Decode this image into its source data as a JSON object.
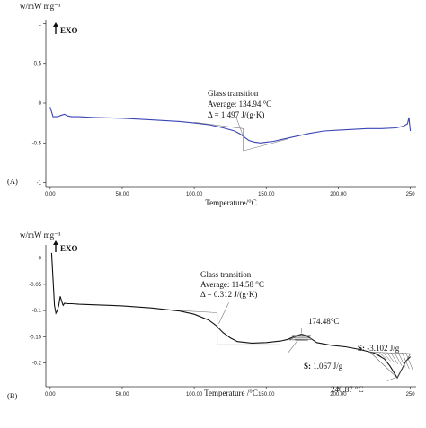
{
  "chart_data": [
    {
      "panel": "(A)",
      "type": "line",
      "ylabel": "w/mW mg⁻¹",
      "xlabel": "Temperature/°C",
      "exo_label": "EXO",
      "xlim": [
        -3,
        254
      ],
      "ylim": [
        -1.05,
        1.05
      ],
      "x_ticks": [
        0,
        50,
        100,
        150,
        200,
        250
      ],
      "x_tick_labels": [
        "0.00",
        "50.00",
        "100.00",
        "150.00",
        "200.00",
        "250"
      ],
      "y_ticks": [
        1,
        0.5,
        0,
        -0.5,
        -1
      ],
      "y_tick_labels": [
        "1",
        "0.5",
        "0",
        "-0.5",
        "-1"
      ],
      "series": [
        {
          "color": "#3a45b5",
          "x": [
            0,
            2,
            5,
            8,
            10,
            12,
            15,
            20,
            30,
            50,
            70,
            90,
            100,
            110,
            120,
            128,
            132,
            135,
            138,
            142,
            146,
            150,
            155,
            160,
            170,
            180,
            190,
            200,
            210,
            220,
            230,
            240,
            245,
            248,
            249,
            250
          ],
          "y": [
            -0.05,
            -0.17,
            -0.17,
            -0.15,
            -0.14,
            -0.16,
            -0.17,
            -0.17,
            -0.18,
            -0.19,
            -0.21,
            -0.23,
            -0.25,
            -0.27,
            -0.31,
            -0.35,
            -0.39,
            -0.43,
            -0.47,
            -0.49,
            -0.5,
            -0.49,
            -0.48,
            -0.46,
            -0.42,
            -0.38,
            -0.35,
            -0.34,
            -0.33,
            -0.32,
            -0.32,
            -0.31,
            -0.29,
            -0.26,
            -0.18,
            -0.35
          ]
        }
      ],
      "annotations": {
        "title": "Glass transition",
        "average": "Average: 134.94 °C",
        "delta": "Δ = 1.497 J/(g·K)"
      }
    },
    {
      "panel": "(B)",
      "type": "line",
      "ylabel": "w/mW mg⁻¹",
      "xlabel": "Temperature /°C",
      "exo_label": "EXO",
      "xlim": [
        -3,
        254
      ],
      "ylim": [
        -0.245,
        0.025
      ],
      "x_ticks": [
        0,
        50,
        100,
        150,
        200,
        250
      ],
      "x_tick_labels": [
        "0.00",
        "50.00",
        "100.00",
        "150.00",
        "200.00",
        "250"
      ],
      "y_ticks": [
        0,
        -0.05,
        -0.1,
        -0.15,
        -0.2
      ],
      "y_tick_labels": [
        "0",
        "-0.05",
        "-0.1",
        "-0.15",
        "-0.2"
      ],
      "series": [
        {
          "color": "#111111",
          "x": [
            1,
            2,
            3,
            4,
            5,
            6,
            7,
            8,
            9,
            10,
            12,
            15,
            20,
            30,
            50,
            70,
            90,
            100,
            110,
            115,
            120,
            125,
            130,
            140,
            150,
            160,
            165,
            170,
            174.48,
            178,
            185,
            195,
            205,
            215,
            225,
            232,
            236,
            240.87,
            244,
            247,
            250
          ],
          "y": [
            0.01,
            -0.04,
            -0.09,
            -0.105,
            -0.1,
            -0.09,
            -0.073,
            -0.082,
            -0.09,
            -0.086,
            -0.087,
            -0.087,
            -0.088,
            -0.089,
            -0.091,
            -0.095,
            -0.101,
            -0.107,
            -0.118,
            -0.128,
            -0.142,
            -0.152,
            -0.159,
            -0.162,
            -0.161,
            -0.158,
            -0.155,
            -0.149,
            -0.145,
            -0.148,
            -0.161,
            -0.166,
            -0.169,
            -0.174,
            -0.181,
            -0.192,
            -0.206,
            -0.228,
            -0.212,
            -0.196,
            -0.188
          ]
        }
      ],
      "annotations": {
        "title": "Glass transition",
        "average": "Average: 114.58 °C",
        "delta": "Δ = 0.312 J/(g·K)",
        "peak_label": "174.48°C",
        "s1_key": "S:",
        "s1_value": " 1.067 J/g",
        "s2_key": "S:",
        "s2_value": " -3.102 J/g",
        "peak2_label": "240.87 °C"
      }
    }
  ]
}
